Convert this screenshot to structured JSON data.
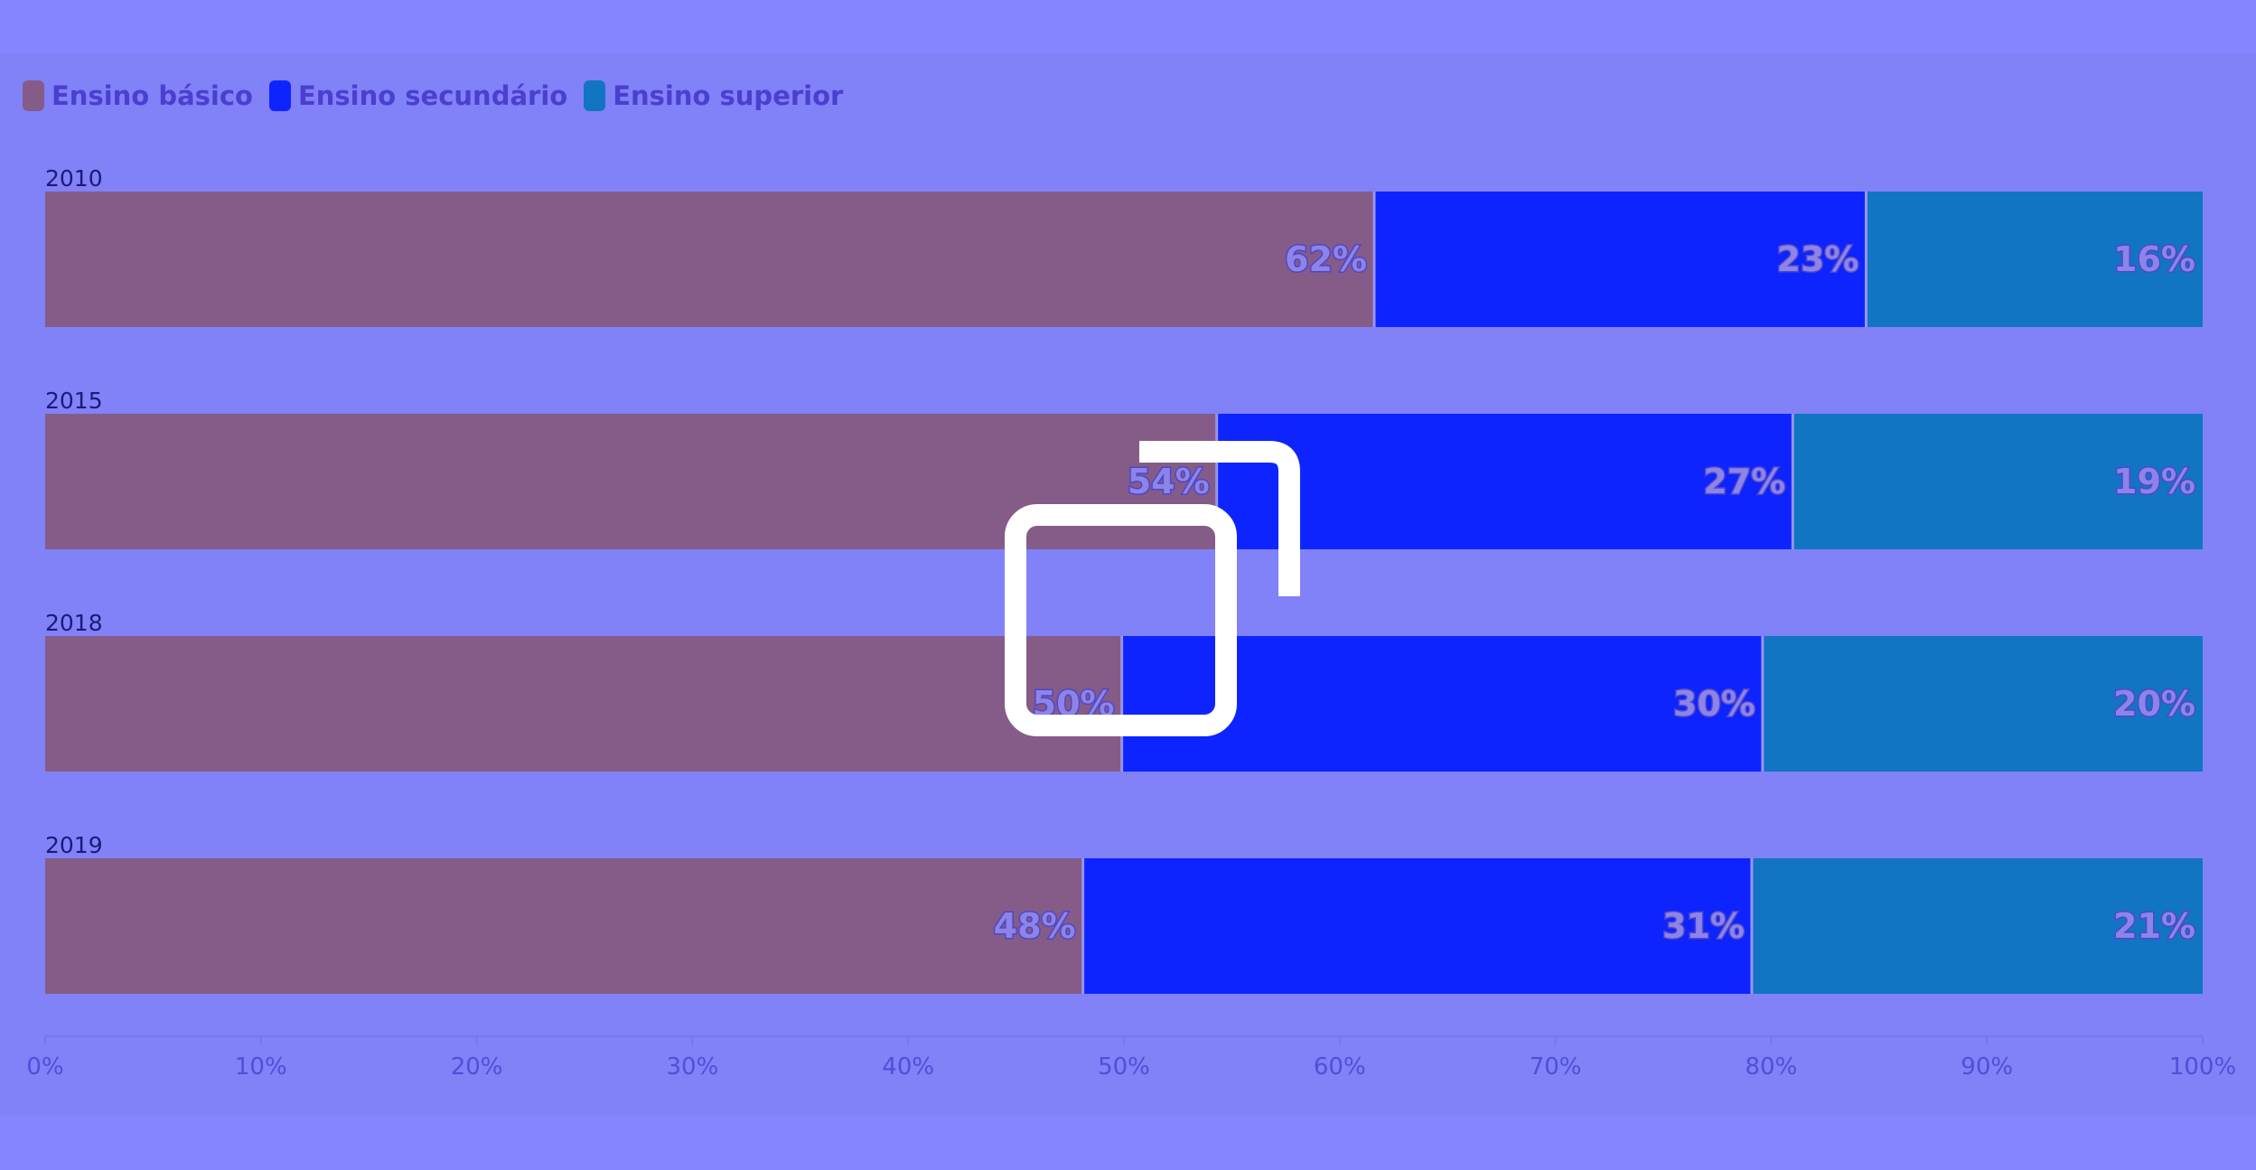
{
  "chart_data": {
    "type": "bar",
    "orientation": "horizontal",
    "stacked": true,
    "categories": [
      "2010",
      "2015",
      "2018",
      "2019"
    ],
    "series": [
      {
        "name": "Ensino básico",
        "color": "#845c87",
        "values": [
          61.6,
          54.3,
          49.9,
          48.1
        ]
      },
      {
        "name": "Ensino secundário",
        "color": "#0e24ff",
        "values": [
          22.8,
          26.7,
          29.7,
          31.0
        ]
      },
      {
        "name": "Ensino superior",
        "color": "#1175c4",
        "values": [
          15.6,
          19.0,
          20.4,
          20.9
        ]
      }
    ],
    "data_labels": [
      [
        "62%",
        "23%",
        "16%"
      ],
      [
        "54%",
        "27%",
        "19%"
      ],
      [
        "50%",
        "30%",
        "20%"
      ],
      [
        "48%",
        "31%",
        "21%"
      ]
    ],
    "x_ticks": [
      "0%",
      "10%",
      "20%",
      "30%",
      "40%",
      "50%",
      "60%",
      "70%",
      "80%",
      "90%",
      "100%"
    ],
    "xlim": [
      0,
      100
    ],
    "legend_position": "top-left",
    "grid": false
  },
  "overlay": {
    "icon": "expand-icon",
    "color": "#ffffff"
  }
}
